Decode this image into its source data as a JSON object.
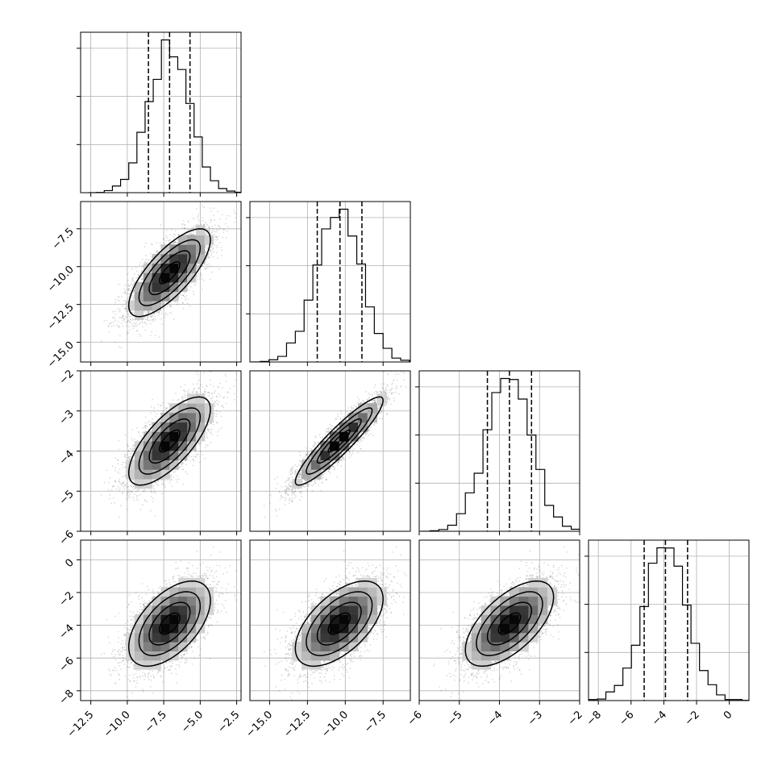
{
  "chart_data": {
    "type": "corner",
    "title": "",
    "parameters": [
      "",
      "",
      "",
      ""
    ],
    "colors": {
      "line": "#000000",
      "points": "#555555",
      "grid": "#b0b0b0",
      "background": "#ffffff"
    },
    "grid": true,
    "axis_ranges": [
      [
        -13.2,
        -2.2
      ],
      [
        -16.3,
        -5.7
      ],
      [
        -6.0,
        -2.0
      ],
      [
        -8.6,
        1.2
      ]
    ],
    "ticks": [
      [
        "−12.5",
        "−10.0",
        "−7.5",
        "−5.0",
        "−2.5"
      ],
      [
        "−15.0",
        "−12.5",
        "−10.0",
        "−7.5"
      ],
      [
        "−6",
        "−5",
        "−4",
        "−3",
        "−2"
      ],
      [
        "−8",
        "−6",
        "−4",
        "−2",
        "0"
      ]
    ],
    "tick_values": [
      [
        -12.5,
        -10.0,
        -7.5,
        -5.0,
        -2.5
      ],
      [
        -15.0,
        -12.5,
        -10.0,
        -7.5
      ],
      [
        -6,
        -5,
        -4,
        -3,
        -2
      ],
      [
        -8,
        -6,
        -4,
        -2,
        0
      ]
    ],
    "means": [
      -7.1,
      -10.4,
      -3.75,
      -3.9
    ],
    "sigmas": [
      1.4,
      1.45,
      0.55,
      1.3
    ],
    "correlations": [
      [
        1.0,
        0.75,
        0.72,
        0.55
      ],
      [
        0.75,
        1.0,
        0.92,
        0.58
      ],
      [
        0.72,
        0.92,
        1.0,
        0.62
      ],
      [
        0.55,
        0.58,
        0.62,
        1.0
      ]
    ],
    "quantiles": [
      [
        -8.55,
        -7.1,
        -5.7
      ],
      [
        -11.85,
        -10.35,
        -8.9
      ],
      [
        -4.3,
        -3.75,
        -3.2
      ],
      [
        -5.2,
        -3.9,
        -2.55
      ]
    ],
    "histogram_bins": 20,
    "contour_levels_sigma": [
      0.5,
      1.0,
      1.5,
      2.0
    ]
  }
}
